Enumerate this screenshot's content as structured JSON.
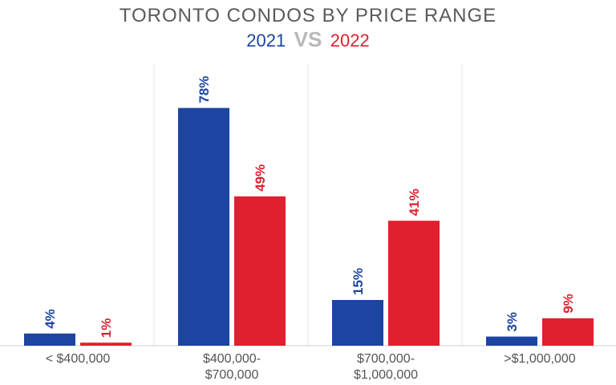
{
  "chart_data": {
    "type": "bar",
    "title": "TORONTO CONDOS BY PRICE RANGE",
    "subtitle": {
      "left": "2021",
      "middle": "VS",
      "right": "2022"
    },
    "categories": [
      [
        "< $400,000"
      ],
      [
        "$400,000-",
        "$700,000"
      ],
      [
        "$700,000-",
        "$1,000,000"
      ],
      [
        ">$1,000,000"
      ]
    ],
    "series": [
      {
        "name": "2021",
        "color": "#1b45a0",
        "values": [
          4,
          78,
          15,
          3
        ],
        "labels": [
          "4%",
          "78%",
          "15%",
          "3%"
        ]
      },
      {
        "name": "2022",
        "color": "#e01f2f",
        "values": [
          1,
          49,
          41,
          9
        ],
        "labels": [
          "1%",
          "49%",
          "41%",
          "9%"
        ]
      }
    ],
    "ylim": [
      0,
      100
    ],
    "grid": false,
    "legend": "subtitle"
  }
}
